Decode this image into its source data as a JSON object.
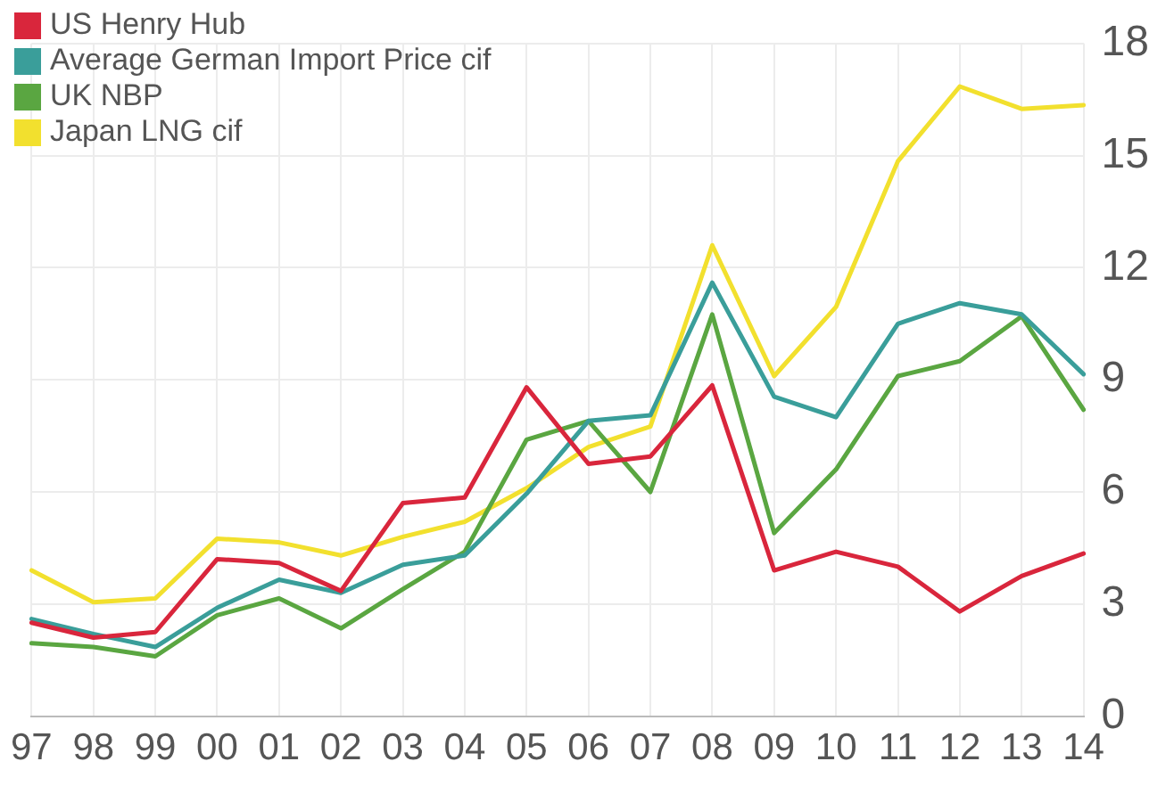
{
  "chart_data": {
    "type": "line",
    "categories": [
      "97",
      "98",
      "99",
      "00",
      "01",
      "02",
      "03",
      "04",
      "05",
      "06",
      "07",
      "08",
      "09",
      "10",
      "11",
      "12",
      "13",
      "14"
    ],
    "series": [
      {
        "name": "US Henry Hub",
        "color": "#d9263c",
        "values": [
          2.5,
          2.1,
          2.25,
          4.2,
          4.1,
          3.35,
          5.7,
          5.85,
          8.8,
          6.75,
          6.95,
          8.85,
          3.9,
          4.4,
          4.0,
          2.8,
          3.75,
          4.35
        ]
      },
      {
        "name": "Average German Import Price cif",
        "color": "#3a9e9a",
        "values": [
          2.6,
          2.2,
          1.85,
          2.9,
          3.65,
          3.3,
          4.05,
          4.3,
          5.95,
          7.9,
          8.05,
          11.6,
          8.55,
          8.0,
          10.5,
          11.05,
          10.75,
          9.15
        ]
      },
      {
        "name": "UK NBP",
        "color": "#5aa641",
        "values": [
          1.95,
          1.85,
          1.6,
          2.7,
          3.15,
          2.35,
          3.4,
          4.4,
          7.4,
          7.9,
          6.0,
          10.75,
          4.9,
          6.6,
          9.1,
          9.5,
          10.7,
          8.2
        ]
      },
      {
        "name": "Japan LNG cif",
        "color": "#f2e02e",
        "values": [
          3.9,
          3.05,
          3.15,
          4.75,
          4.65,
          4.3,
          4.8,
          5.2,
          6.1,
          7.2,
          7.75,
          12.6,
          9.1,
          10.95,
          14.85,
          16.85,
          16.25,
          16.35
        ]
      }
    ],
    "ylim": [
      0,
      18
    ],
    "yticks": [
      0,
      3,
      6,
      9,
      12,
      15,
      18
    ],
    "grid": true,
    "legend": "top left",
    "marker": "none",
    "line_style": "solid"
  }
}
